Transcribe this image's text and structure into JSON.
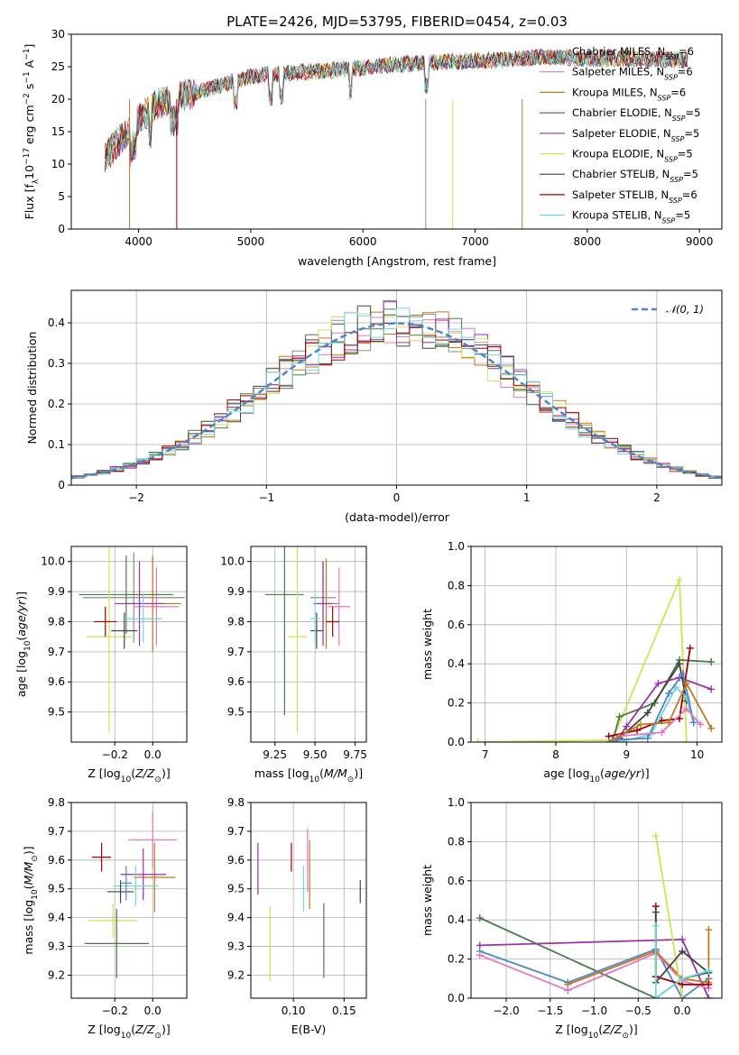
{
  "title": "PLATE=2426, MJD=53795, FIBERID=0454, z=0.03",
  "colors": {
    "Chabrier MILES": "#8c8c8c",
    "Salpeter MILES": "#e377c2",
    "Kroupa MILES": "#c07820",
    "Chabrier ELODIE": "#4a7a4a",
    "Salpeter ELODIE": "#9b30a8",
    "Kroupa ELODIE": "#d4e157",
    "Chabrier STELIB": "#444444",
    "Salpeter STELIB": "#a00000",
    "Kroupa STELIB": "#70d8e0",
    "gauss": "#4a86c8"
  },
  "chart_data": [
    {
      "id": "spectrum",
      "type": "line",
      "title": "PLATE=2426, MJD=53795, FIBERID=0454, z=0.03",
      "xlabel": "wavelength [Angstrom, rest frame]",
      "ylabel": "Flux [f",
      "xlim": [
        3400,
        9200
      ],
      "ylim": [
        0,
        30
      ],
      "xticks": [
        4000,
        5000,
        6000,
        7000,
        8000,
        9000
      ],
      "yticks": [
        0,
        5,
        10,
        15,
        20,
        25,
        30
      ],
      "legend_position": "right",
      "grid": false,
      "series": [
        {
          "name": "Chabrier MILES, N",
          "ssp": "=6",
          "color": "#8c8c8c"
        },
        {
          "name": "Salpeter MILES, N",
          "ssp": "=6",
          "color": "#e377c2"
        },
        {
          "name": "Kroupa MILES, N",
          "ssp": "=6",
          "color": "#c07820"
        },
        {
          "name": "Chabrier ELODIE, N",
          "ssp": "=5",
          "color": "#4a7a4a"
        },
        {
          "name": "Salpeter ELODIE, N",
          "ssp": "=5",
          "color": "#9b30a8"
        },
        {
          "name": "Kroupa ELODIE, N",
          "ssp": "=5",
          "color": "#d4e157"
        },
        {
          "name": "Chabrier STELIB, N",
          "ssp": "=5",
          "color": "#444444"
        },
        {
          "name": "Salpeter STELIB, N",
          "ssp": "=6",
          "color": "#a00000"
        },
        {
          "name": "Kroupa STELIB, N",
          "ssp": "=5",
          "color": "#70d8e0"
        }
      ],
      "continuum": {
        "x": [
          3700,
          3900,
          4000,
          4200,
          4500,
          4800,
          5000,
          5300,
          5600,
          6000,
          6400,
          6800,
          7200,
          7600,
          8000,
          8500,
          8900
        ],
        "y": [
          11,
          15,
          17,
          19.5,
          21,
          22.5,
          23.5,
          24,
          24.3,
          24.8,
          25.5,
          25.8,
          26,
          26.5,
          26.3,
          26.2,
          26
        ]
      }
    },
    {
      "id": "residuals",
      "type": "histogram",
      "xlabel": "(data-model)/error",
      "ylabel": "Normed distribution",
      "xlim": [
        -2.5,
        2.5
      ],
      "ylim": [
        0,
        0.48
      ],
      "xticks": [
        -2,
        -1,
        0,
        1,
        2
      ],
      "yticks": [
        0,
        0.1,
        0.2,
        0.3,
        0.4
      ],
      "grid": true,
      "legend_position": "upper right",
      "gauss_label": "𝒩(0, 1)",
      "bin_width": 0.1
    },
    {
      "id": "age_vs_Z",
      "type": "errorbar",
      "xlabel": "Z [log",
      "ylabel": "age  [log",
      "xlim": [
        -0.43,
        0.18
      ],
      "ylim": [
        9.4,
        10.05
      ],
      "xticks": [
        -0.2,
        0.0
      ],
      "yticks": [
        9.5,
        9.6,
        9.7,
        9.8,
        9.9,
        10.0
      ],
      "grid": true,
      "points": [
        {
          "x": -0.1,
          "y": 9.88,
          "xerr": 0.27,
          "yerr": 0.15,
          "color": "#8c8c8c"
        },
        {
          "x": 0.02,
          "y": 9.85,
          "xerr": 0.12,
          "yerr": 0.13,
          "color": "#e377c2"
        },
        {
          "x": 0.0,
          "y": 9.86,
          "xerr": 0.15,
          "yerr": 0.16,
          "color": "#c07820"
        },
        {
          "x": -0.14,
          "y": 9.89,
          "xerr": 0.25,
          "yerr": 0.13,
          "color": "#4a7a4a"
        },
        {
          "x": -0.07,
          "y": 9.86,
          "xerr": 0.13,
          "yerr": 0.14,
          "color": "#9b30a8"
        },
        {
          "x": -0.23,
          "y": 9.75,
          "xerr": 0.12,
          "yerr": 0.32,
          "color": "#d4e157"
        },
        {
          "x": -0.15,
          "y": 9.77,
          "xerr": 0.07,
          "yerr": 0.06,
          "color": "#444444"
        },
        {
          "x": -0.25,
          "y": 9.8,
          "xerr": 0.06,
          "yerr": 0.05,
          "color": "#a00000"
        },
        {
          "x": -0.05,
          "y": 9.81,
          "xerr": 0.1,
          "yerr": 0.08,
          "color": "#70d8e0"
        }
      ]
    },
    {
      "id": "age_vs_mass",
      "type": "errorbar",
      "xlabel": "mass [log",
      "ylabel": "",
      "xlim": [
        9.1,
        9.82
      ],
      "ylim": [
        9.4,
        10.05
      ],
      "xticks": [
        9.25,
        9.5,
        9.75
      ],
      "yticks": [
        9.5,
        9.6,
        9.7,
        9.8,
        9.9,
        10.0
      ],
      "grid": true,
      "points": [
        {
          "x": 9.55,
          "y": 9.88,
          "xerr": 0.08,
          "yerr": 0.12,
          "color": "#8c8c8c"
        },
        {
          "x": 9.65,
          "y": 9.85,
          "xerr": 0.07,
          "yerr": 0.13,
          "color": "#e377c2"
        },
        {
          "x": 9.57,
          "y": 9.86,
          "xerr": 0.08,
          "yerr": 0.15,
          "color": "#c07820"
        },
        {
          "x": 9.31,
          "y": 9.89,
          "xerr": 0.12,
          "yerr": 0.4,
          "color": "#4a7a4a"
        },
        {
          "x": 9.55,
          "y": 9.86,
          "xerr": 0.06,
          "yerr": 0.14,
          "color": "#9b30a8"
        },
        {
          "x": 9.39,
          "y": 9.75,
          "xerr": 0.06,
          "yerr": 0.32,
          "color": "#d4e157"
        },
        {
          "x": 9.51,
          "y": 9.77,
          "xerr": 0.04,
          "yerr": 0.06,
          "color": "#444444"
        },
        {
          "x": 9.61,
          "y": 9.8,
          "xerr": 0.04,
          "yerr": 0.05,
          "color": "#a00000"
        },
        {
          "x": 9.5,
          "y": 9.81,
          "xerr": 0.03,
          "yerr": 0.08,
          "color": "#70d8e0"
        }
      ]
    },
    {
      "id": "mass_weight_vs_age",
      "type": "line",
      "xlabel": "age  [log",
      "ylabel": "mass weight",
      "xlim": [
        6.8,
        10.35
      ],
      "ylim": [
        0,
        1.0
      ],
      "xticks": [
        7,
        8,
        9,
        10
      ],
      "yticks": [
        0.0,
        0.2,
        0.4,
        0.6,
        0.8,
        1.0
      ],
      "grid": true,
      "series": [
        {
          "color": "#d4e157",
          "x": [
            6.9,
            8.8,
            9.75,
            9.85
          ],
          "y": [
            0.0,
            0.01,
            0.83,
            0.0
          ]
        },
        {
          "color": "#4a7a4a",
          "x": [
            8.8,
            8.9,
            9.4,
            9.75,
            10.2
          ],
          "y": [
            0.0,
            0.13,
            0.2,
            0.42,
            0.41
          ]
        },
        {
          "color": "#9b30a8",
          "x": [
            8.85,
            9.0,
            9.45,
            9.75,
            10.2
          ],
          "y": [
            0.0,
            0.08,
            0.3,
            0.33,
            0.27
          ]
        },
        {
          "color": "#444444",
          "x": [
            8.9,
            9.3,
            9.75,
            9.85
          ],
          "y": [
            0.02,
            0.15,
            0.4,
            0.21
          ]
        },
        {
          "color": "#a00000",
          "x": [
            8.75,
            9.15,
            9.5,
            9.75,
            9.9
          ],
          "y": [
            0.03,
            0.06,
            0.11,
            0.12,
            0.48
          ]
        },
        {
          "color": "#70d8e0",
          "x": [
            8.9,
            9.35,
            9.7,
            9.85,
            9.95
          ],
          "y": [
            0.0,
            0.04,
            0.28,
            0.23,
            0.1
          ]
        },
        {
          "color": "#4a86c8",
          "x": [
            8.8,
            9.3,
            9.6,
            9.8,
            9.95
          ],
          "y": [
            0.01,
            0.02,
            0.25,
            0.35,
            0.1
          ]
        },
        {
          "color": "#e377c2",
          "x": [
            8.9,
            9.5,
            9.85,
            10.05
          ],
          "y": [
            0.03,
            0.05,
            0.17,
            0.09
          ]
        },
        {
          "color": "#c07820",
          "x": [
            8.75,
            9.2,
            9.6,
            9.85,
            10.2
          ],
          "y": [
            0.0,
            0.09,
            0.1,
            0.3,
            0.07
          ]
        }
      ]
    },
    {
      "id": "mass_vs_Z",
      "type": "errorbar",
      "xlabel": "Z [log",
      "ylabel": "mass [log",
      "xlim": [
        -0.43,
        0.18
      ],
      "ylim": [
        9.12,
        9.8
      ],
      "xticks": [
        -0.2,
        0.0
      ],
      "yticks": [
        9.2,
        9.3,
        9.4,
        9.5,
        9.6,
        9.7,
        9.8
      ],
      "grid": true,
      "points": [
        {
          "x": 0.0,
          "y": 9.67,
          "xerr": 0.13,
          "yerr": 0.1,
          "color": "#e377c2"
        },
        {
          "x": 0.01,
          "y": 9.54,
          "xerr": 0.11,
          "yerr": 0.12,
          "color": "#c07820"
        },
        {
          "x": -0.27,
          "y": 9.61,
          "xerr": 0.05,
          "yerr": 0.05,
          "color": "#a00000"
        },
        {
          "x": -0.05,
          "y": 9.55,
          "xerr": 0.12,
          "yerr": 0.09,
          "color": "#9b30a8"
        },
        {
          "x": -0.09,
          "y": 9.51,
          "xerr": 0.12,
          "yerr": 0.07,
          "color": "#70d8e0"
        },
        {
          "x": -0.17,
          "y": 9.49,
          "xerr": 0.07,
          "yerr": 0.04,
          "color": "#444444"
        },
        {
          "x": -0.21,
          "y": 9.39,
          "xerr": 0.13,
          "yerr": 0.06,
          "color": "#d4e157"
        },
        {
          "x": -0.19,
          "y": 9.31,
          "xerr": 0.17,
          "yerr": 0.12,
          "color": "#4a7a4a"
        },
        {
          "x": -0.14,
          "y": 9.52,
          "xerr": 0.03,
          "yerr": 0.06,
          "color": "#4a86c8"
        }
      ]
    },
    {
      "id": "mass_vs_EBV",
      "type": "errorbar",
      "xlabel": "E(B-V)",
      "ylabel": "",
      "xlim": [
        0.058,
        0.172
      ],
      "ylim": [
        9.12,
        9.8
      ],
      "xticks": [
        0.1,
        0.15
      ],
      "yticks": [
        9.2,
        9.3,
        9.4,
        9.5,
        9.6,
        9.7,
        9.8
      ],
      "grid": true,
      "points": [
        {
          "x": 0.065,
          "y": 9.57,
          "xerr": 0.0,
          "yerr": 0.09,
          "color": "#9b30a8"
        },
        {
          "x": 0.077,
          "y": 9.31,
          "xerr": 0.0,
          "yerr": 0.13,
          "color": "#d4e157"
        },
        {
          "x": 0.098,
          "y": 9.61,
          "xerr": 0.0,
          "yerr": 0.05,
          "color": "#a00000"
        },
        {
          "x": 0.11,
          "y": 9.5,
          "xerr": 0.0,
          "yerr": 0.08,
          "color": "#70d8e0"
        },
        {
          "x": 0.114,
          "y": 9.6,
          "xerr": 0.0,
          "yerr": 0.11,
          "color": "#e377c2"
        },
        {
          "x": 0.116,
          "y": 9.55,
          "xerr": 0.0,
          "yerr": 0.12,
          "color": "#c07820"
        },
        {
          "x": 0.13,
          "y": 9.32,
          "xerr": 0.0,
          "yerr": 0.13,
          "color": "#4a7a4a"
        },
        {
          "x": 0.166,
          "y": 9.49,
          "xerr": 0.0,
          "yerr": 0.04,
          "color": "#444444"
        }
      ]
    },
    {
      "id": "mass_weight_vs_Z",
      "type": "line",
      "xlabel": "Z [log",
      "ylabel": "mass weight",
      "xlim": [
        -2.4,
        0.45
      ],
      "ylim": [
        0,
        1.0
      ],
      "xticks": [
        -2.0,
        -1.5,
        -1.0,
        -0.5,
        0.0
      ],
      "yticks": [
        0.0,
        0.2,
        0.4,
        0.6,
        0.8,
        1.0
      ],
      "grid": true,
      "series": [
        {
          "color": "#4a7a4a",
          "x": [
            -2.3,
            -0.3,
            0.0,
            0.3
          ],
          "y": [
            0.41,
            0.0,
            0.1,
            0.13
          ]
        },
        {
          "color": "#9b30a8",
          "x": [
            -2.3,
            0.0,
            0.3
          ],
          "y": [
            0.27,
            0.3,
            0.0
          ]
        },
        {
          "color": "#4a86c8",
          "x": [
            -2.3,
            -1.3,
            -0.3,
            0.0,
            0.3
          ],
          "y": [
            0.24,
            0.08,
            0.25,
            0.0,
            0.1
          ]
        },
        {
          "color": "#e377c2",
          "x": [
            -2.3,
            -1.3,
            -0.3,
            0.0,
            0.3
          ],
          "y": [
            0.22,
            0.04,
            0.23,
            0.09,
            0.05
          ]
        },
        {
          "color": "#c07820",
          "x": [
            -1.3,
            -0.3,
            0.0,
            0.3,
            0.3
          ],
          "y": [
            0.07,
            0.24,
            0.1,
            0.08,
            0.35
          ]
        },
        {
          "color": "#d4e157",
          "x": [
            -0.3,
            0.0
          ],
          "y": [
            0.83,
            0.0
          ]
        },
        {
          "color": "#a00000",
          "x": [
            -0.3,
            -0.3,
            0.0,
            0.3
          ],
          "y": [
            0.47,
            0.11,
            0.07,
            0.07
          ]
        },
        {
          "color": "#444444",
          "x": [
            -0.3,
            -0.3,
            0.0,
            0.3
          ],
          "y": [
            0.44,
            0.08,
            0.24,
            0.13
          ]
        },
        {
          "color": "#70d8e0",
          "x": [
            -0.3,
            -0.3,
            0.0,
            0.3
          ],
          "y": [
            0.37,
            0.0,
            0.1,
            0.14
          ]
        }
      ]
    }
  ]
}
